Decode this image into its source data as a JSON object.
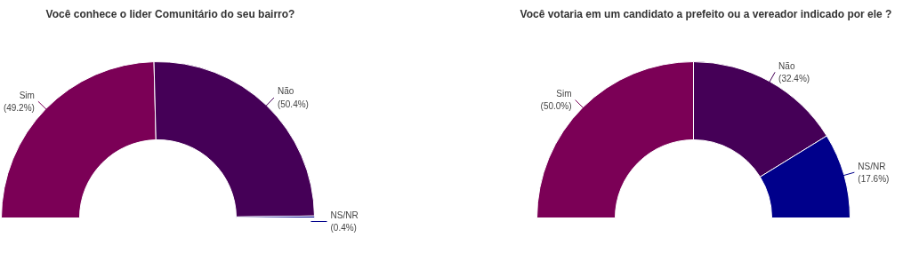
{
  "chart_data": [
    {
      "type": "donut",
      "title": "Você conhece o lider Comunitário do seu bairro?",
      "categories": [
        "Sim",
        "Não",
        "NS/NR"
      ],
      "values": [
        49.2,
        50.4,
        0.4
      ],
      "colors": [
        "#7b0056",
        "#450057",
        "#00008b"
      ],
      "value_labels": [
        "(49.2%)",
        "(50.4%)",
        "(0.4%)"
      ]
    },
    {
      "type": "donut",
      "title": "Você votaria em um candidato a prefeito ou a vereador indicado por ele ?",
      "categories": [
        "Sim",
        "Não",
        "NS/NR"
      ],
      "values": [
        50.0,
        32.4,
        17.6
      ],
      "colors": [
        "#7b0056",
        "#450057",
        "#00008b"
      ],
      "value_labels": [
        "(50.0%)",
        "(32.4%)",
        "(17.6%)"
      ]
    }
  ]
}
